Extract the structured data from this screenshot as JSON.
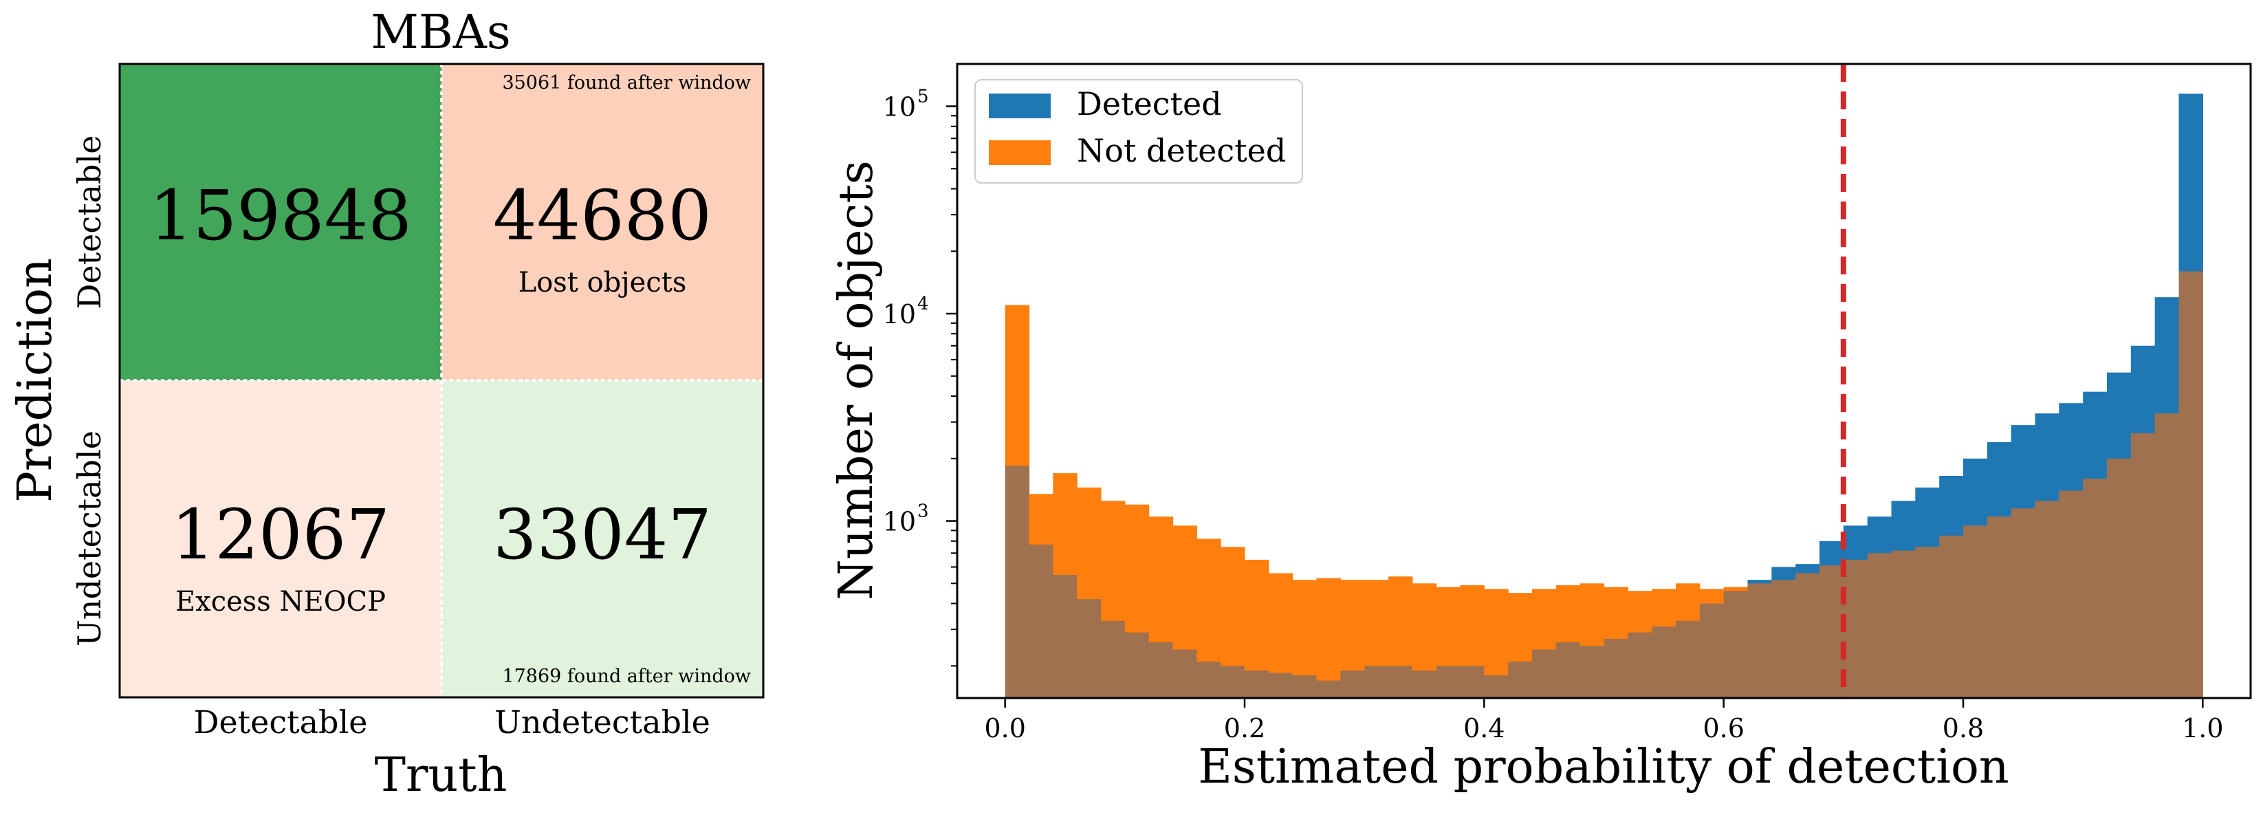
{
  "confusion": {
    "title": "MBAs",
    "xlabel": "Truth",
    "ylabel": "Prediction",
    "col_labels": [
      "Detectable",
      "Undetectable"
    ],
    "row_labels": [
      "Detectable",
      "Undetectable"
    ],
    "cells": {
      "tl": {
        "value": "159848",
        "color": "#41a55a"
      },
      "tr": {
        "value": "44680",
        "caption": "Lost objects",
        "note": "35061 found after window",
        "color": "#fdd0bc"
      },
      "bl": {
        "value": "12067",
        "caption": "Excess NEOCP",
        "color": "#fee8de"
      },
      "br": {
        "value": "33047",
        "note": "17869 found after window",
        "color": "#e1f3dc"
      }
    }
  },
  "chart_data": {
    "type": "bar",
    "subtype": "histogram",
    "xlabel": "Estimated probability of detection",
    "ylabel": "Number of objects",
    "xlim": [
      -0.04,
      1.04
    ],
    "ylim": [
      140,
      160000
    ],
    "yscale": "log",
    "x_ticks": [
      "0.0",
      "0.2",
      "0.4",
      "0.6",
      "0.8",
      "1.0"
    ],
    "y_ticks": [
      {
        "base": "10",
        "exp": "3",
        "value": 1000
      },
      {
        "base": "10",
        "exp": "4",
        "value": 10000
      },
      {
        "base": "10",
        "exp": "5",
        "value": 100000
      }
    ],
    "legend_position": "upper-left",
    "bin_edges_start": 0.0,
    "bin_width": 0.02,
    "threshold": {
      "x": 0.7,
      "color": "#d62728"
    },
    "series": [
      {
        "name": "Detected",
        "color": "#1f77b4",
        "values": [
          1850,
          770,
          550,
          420,
          330,
          290,
          260,
          240,
          210,
          200,
          190,
          185,
          180,
          170,
          190,
          200,
          200,
          190,
          200,
          200,
          180,
          210,
          240,
          260,
          250,
          270,
          290,
          310,
          330,
          400,
          460,
          520,
          600,
          620,
          800,
          950,
          1050,
          1250,
          1450,
          1650,
          2000,
          2400,
          2900,
          3300,
          3700,
          4200,
          5200,
          7000,
          12000,
          115000
        ]
      },
      {
        "name": "Not detected",
        "color": "#ff7f0e",
        "values": [
          11000,
          1350,
          1700,
          1450,
          1250,
          1200,
          1050,
          950,
          820,
          750,
          650,
          560,
          520,
          530,
          520,
          520,
          540,
          500,
          480,
          490,
          470,
          450,
          470,
          490,
          500,
          480,
          460,
          470,
          500,
          470,
          480,
          500,
          520,
          560,
          610,
          650,
          700,
          720,
          750,
          850,
          950,
          1050,
          1150,
          1250,
          1400,
          1600,
          2000,
          2650,
          3300,
          16000
        ]
      }
    ]
  }
}
